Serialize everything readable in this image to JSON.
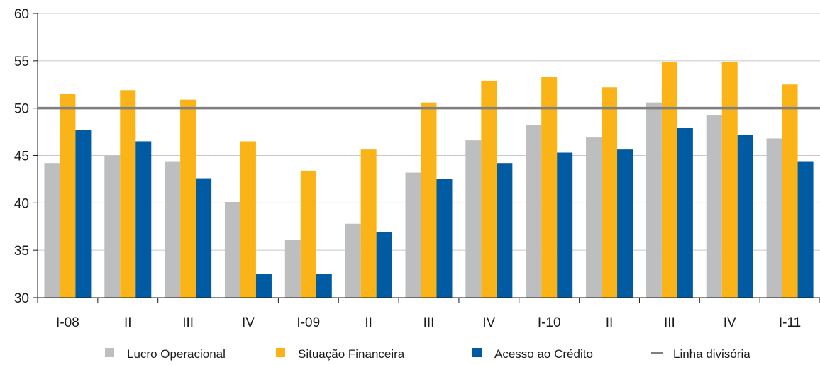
{
  "chart_data": {
    "type": "bar",
    "categories": [
      "I-08",
      "II",
      "III",
      "IV",
      "I-09",
      "II",
      "III",
      "IV",
      "I-10",
      "II",
      "III",
      "IV",
      "I-11"
    ],
    "series": [
      {
        "name": "Lucro Operacional",
        "color": "#bdbec0",
        "values": [
          44.2,
          45.0,
          44.4,
          40.1,
          36.1,
          37.8,
          43.2,
          46.6,
          48.2,
          46.9,
          50.6,
          49.3,
          46.8
        ]
      },
      {
        "name": "Situação Financeira",
        "color": "#fbb417",
        "values": [
          51.5,
          51.9,
          50.9,
          46.5,
          43.4,
          45.7,
          50.6,
          52.9,
          53.3,
          52.2,
          54.9,
          54.9,
          52.5
        ]
      },
      {
        "name": "Acesso ao Crédito",
        "color": "#005ba3",
        "values": [
          47.7,
          46.5,
          42.6,
          32.5,
          32.5,
          36.9,
          42.5,
          44.2,
          45.3,
          45.7,
          47.9,
          47.2,
          44.4
        ]
      }
    ],
    "reference_line": {
      "name": "Linha divisória",
      "value": 50,
      "color": "#7f7f7f"
    },
    "ylim": [
      30,
      60
    ],
    "yticks": [
      30,
      35,
      40,
      45,
      50,
      55,
      60
    ],
    "grid": true,
    "legend_position": "bottom"
  }
}
